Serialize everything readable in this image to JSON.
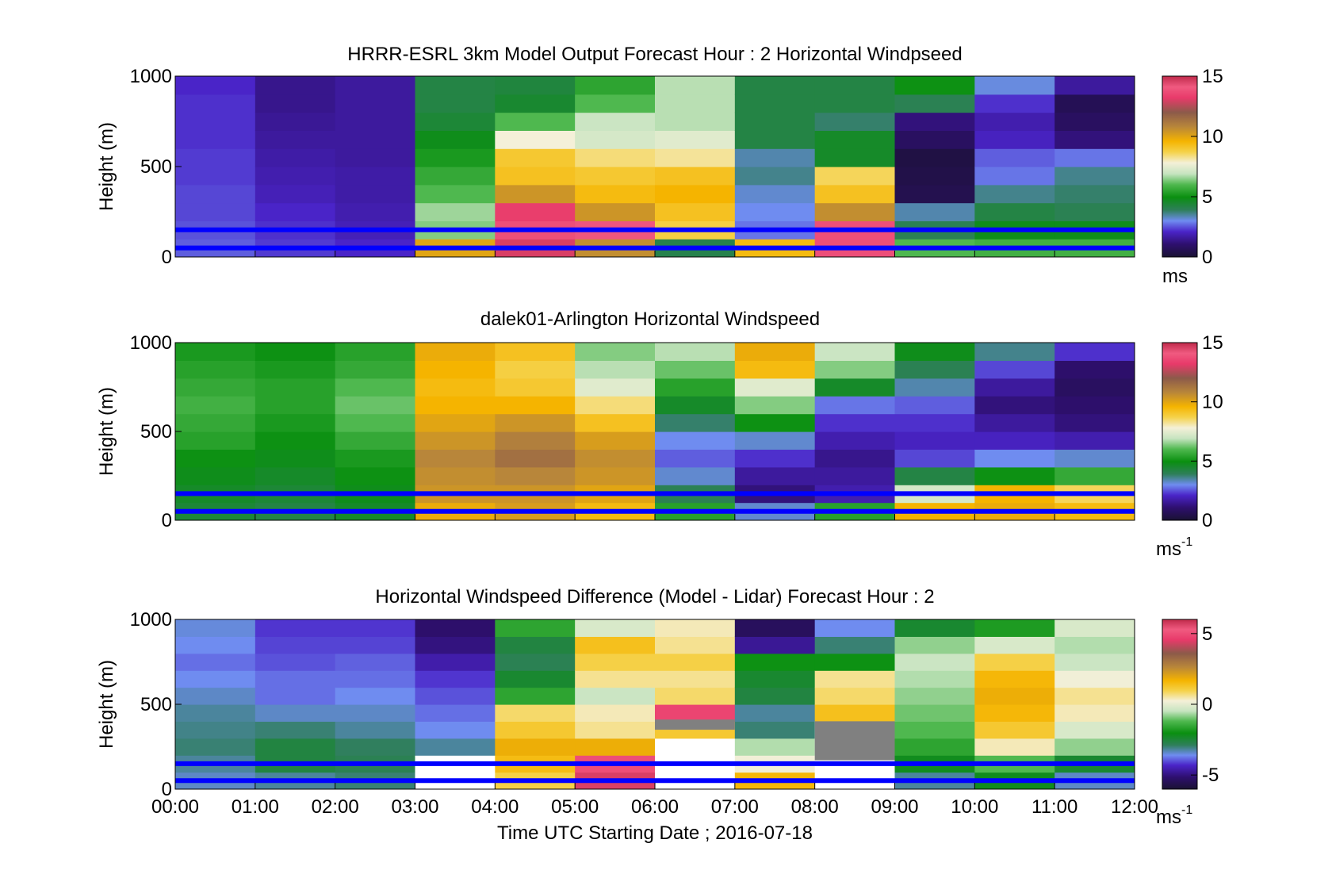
{
  "chart_data": [
    {
      "type": "heatmap",
      "title": "HRRR-ESRL 3km Model Output   Forecast Hour : 2 Horizontal Windpseed",
      "ylabel": "Height (m)",
      "ylim": [
        0,
        1000
      ],
      "yticks": [
        "0",
        "500",
        "1000"
      ],
      "x_categories": [
        "00:00",
        "01:00",
        "02:00",
        "03:00",
        "04:00",
        "05:00",
        "06:00",
        "07:00",
        "08:00",
        "09:00",
        "10:00",
        "11:00",
        "12:00"
      ],
      "colorbar": {
        "range": [
          0,
          15
        ],
        "ticks": [
          "0",
          "5",
          "10",
          "15"
        ],
        "unit": "ms",
        "unit_sup": ""
      },
      "highlight_heights": [
        50,
        150
      ],
      "profile_heights": [
        100,
        200,
        300,
        400,
        500,
        600,
        700,
        800,
        900,
        1000
      ],
      "columns": [
        [
          2.6,
          2.5,
          2.4,
          2.4,
          2.3,
          2.3,
          2.2,
          2.2,
          2.2,
          2.1
        ],
        [
          2.3,
          2.2,
          2.1,
          1.9,
          1.8,
          1.7,
          1.6,
          1.5,
          1.4,
          1.4
        ],
        [
          2.1,
          1.9,
          1.8,
          1.7,
          1.7,
          1.6,
          1.6,
          1.6,
          1.6,
          1.6
        ],
        [
          10.0,
          6.4,
          6.6,
          6.0,
          5.6,
          5.2,
          4.8,
          4.4,
          4.2,
          4.2
        ],
        [
          13.0,
          13.8,
          13.3,
          10.4,
          9.2,
          9.0,
          7.8,
          6.0,
          4.5,
          4.3
        ],
        [
          10.6,
          14.0,
          10.4,
          9.4,
          9.0,
          8.4,
          7.2,
          7.0,
          6.0,
          5.5
        ],
        [
          4.1,
          8.8,
          9.2,
          9.6,
          9.2,
          8.2,
          7.4,
          6.8,
          6.8,
          6.8
        ],
        [
          9.4,
          2.8,
          3.0,
          3.2,
          3.6,
          3.4,
          4.2,
          4.2,
          4.2,
          4.2
        ],
        [
          13.8,
          13.8,
          10.6,
          9.2,
          8.6,
          4.6,
          4.6,
          3.8,
          4.2,
          4.2
        ],
        [
          6.0,
          4.0,
          3.4,
          0.5,
          0.4,
          0.3,
          0.8,
          1.2,
          4.0,
          5.0
        ],
        [
          5.8,
          4.8,
          4.2,
          3.6,
          2.8,
          2.6,
          2.0,
          1.8,
          2.2,
          3.1
        ],
        [
          5.8,
          4.8,
          4.0,
          3.8,
          3.6,
          2.8,
          1.2,
          0.8,
          0.6,
          1.6
        ]
      ]
    },
    {
      "type": "heatmap",
      "title": "dalek01-Arlington  Horizontal Windspeed",
      "ylabel": "Height (m)",
      "ylim": [
        0,
        1000
      ],
      "yticks": [
        "0",
        "500",
        "1000"
      ],
      "colorbar": {
        "range": [
          0,
          15
        ],
        "ticks": [
          "0",
          "5",
          "10",
          "15"
        ],
        "unit": "ms",
        "unit_sup": "-1"
      },
      "highlight_heights": [
        50,
        150
      ],
      "profile_heights": [
        100,
        200,
        300,
        400,
        500,
        600,
        700,
        800,
        900,
        1000
      ],
      "columns": [
        [
          4.4,
          4.6,
          4.8,
          5.0,
          5.4,
          5.6,
          5.8,
          5.6,
          5.4,
          5.2
        ],
        [
          4.2,
          4.4,
          4.6,
          4.8,
          5.0,
          5.2,
          5.4,
          5.4,
          5.2,
          5.0
        ],
        [
          4.6,
          4.8,
          5.0,
          5.2,
          5.6,
          6.0,
          6.2,
          6.0,
          5.6,
          5.4
        ],
        [
          9.8,
          10.4,
          10.6,
          10.8,
          10.4,
          10.0,
          9.6,
          9.4,
          9.6,
          9.8
        ],
        [
          10.2,
          10.4,
          10.8,
          11.4,
          11.0,
          10.4,
          9.6,
          9.0,
          8.8,
          9.2
        ],
        [
          9.4,
          10.0,
          10.4,
          10.6,
          10.2,
          9.2,
          8.4,
          7.4,
          6.8,
          6.4
        ],
        [
          5.4,
          4.0,
          3.2,
          2.6,
          3.0,
          3.8,
          4.6,
          5.4,
          6.2,
          6.8
        ],
        [
          3.2,
          1.2,
          1.6,
          2.2,
          3.2,
          5.0,
          6.4,
          7.4,
          9.4,
          9.8
        ],
        [
          5.4,
          1.8,
          1.6,
          1.4,
          1.8,
          2.2,
          2.8,
          4.6,
          6.4,
          7.0
        ],
        [
          9.6,
          7.2,
          4.2,
          2.4,
          2.0,
          2.2,
          2.6,
          3.4,
          4.0,
          4.8
        ],
        [
          9.8,
          9.6,
          5.0,
          3.0,
          2.0,
          1.6,
          1.2,
          1.6,
          2.4,
          3.6
        ],
        [
          9.4,
          8.6,
          5.6,
          3.2,
          1.8,
          1.2,
          1.0,
          0.8,
          1.0,
          2.2
        ]
      ]
    },
    {
      "type": "heatmap",
      "title": "Horizontal Windspeed Difference (Model - Lidar) Forecast Hour : 2",
      "xlabel": "Time UTC  Starting Date ; 2016-07-18",
      "ylabel": "Height (m)",
      "ylim": [
        0,
        1000
      ],
      "yticks": [
        "0",
        "500",
        "1000"
      ],
      "x_categories": [
        "00:00",
        "01:00",
        "02:00",
        "03:00",
        "04:00",
        "05:00",
        "06:00",
        "07:00",
        "08:00",
        "09:00",
        "10:00",
        "11:00",
        "12:00"
      ],
      "colorbar": {
        "range": [
          -6,
          6
        ],
        "ticks": [
          "-5",
          "0",
          "5"
        ],
        "unit": "ms",
        "unit_sup": "-1"
      },
      "highlight_heights": [
        50,
        150
      ],
      "profile_heights": [
        100,
        200,
        300,
        400,
        500,
        600,
        700,
        800,
        900,
        1000
      ],
      "columns": [
        [
          -3.4,
          -3.2,
          -3.0,
          -3.1,
          -3.2,
          -3.4,
          -3.6,
          -3.8,
          -3.6,
          -3.5
        ],
        [
          -3.2,
          -2.6,
          -2.6,
          -3.0,
          -3.4,
          -3.8,
          -3.8,
          -4.0,
          -4.1,
          -4.2
        ],
        [
          -3.0,
          -2.8,
          -2.9,
          -3.2,
          -3.4,
          -3.6,
          -3.8,
          -3.9,
          -4.1,
          -4.2
        ],
        [
          -9.9,
          -9.9,
          -3.2,
          -3.6,
          -3.8,
          -4.0,
          -4.2,
          -4.6,
          -5.0,
          -5.2
        ],
        [
          1.0,
          1.5,
          1.8,
          1.2,
          0.8,
          -1.6,
          -2.4,
          -2.8,
          -2.6,
          -1.6
        ],
        [
          4.4,
          5.0,
          1.8,
          0.6,
          0.4,
          -0.4,
          0.6,
          1.0,
          1.4,
          -0.2
        ],
        [
          -9.9,
          -9.9,
          -9.9,
          1.2,
          4.8,
          0.8,
          0.6,
          1.0,
          0.6,
          0.4
        ],
        [
          1.6,
          0.2,
          -0.6,
          -3.0,
          -3.2,
          -2.6,
          -2.4,
          -2.0,
          -4.8,
          -5.4
        ],
        [
          -9.9,
          -9.9,
          -9.9,
          -9.9,
          1.4,
          0.8,
          0.6,
          -2.0,
          -3.0,
          -3.6
        ],
        [
          -3.2,
          -2.2,
          -1.6,
          -1.2,
          -1.0,
          -0.8,
          -0.6,
          -0.4,
          -0.8,
          -2.4
        ],
        [
          -2.2,
          -1.2,
          0.4,
          1.2,
          1.6,
          1.8,
          1.6,
          1.0,
          -0.2,
          -1.8
        ],
        [
          -3.4,
          -2.4,
          -0.8,
          -0.2,
          0.4,
          0.6,
          0.2,
          -0.4,
          -0.6,
          -0.2
        ]
      ]
    }
  ],
  "colors": {
    "highlight_line": "#0000ff",
    "missing_gray": "#808080"
  }
}
